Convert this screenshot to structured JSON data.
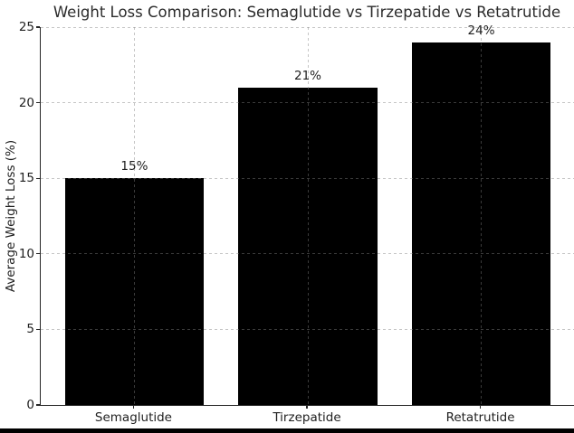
{
  "chart_data": {
    "type": "bar",
    "title": "Weight Loss Comparison: Semaglutide vs Tirzepatide vs Retatrutide",
    "categories": [
      "Semaglutide",
      "Tirzepatide",
      "Retatrutide"
    ],
    "values": [
      15,
      21,
      24
    ],
    "bar_labels": [
      "15%",
      "21%",
      "24%"
    ],
    "xlabel": "",
    "ylabel": "Average Weight Loss (%)",
    "ylim": [
      0,
      25
    ],
    "yticks": [
      0,
      5,
      10,
      15,
      20,
      25
    ],
    "legend": "none",
    "grid": "dashed gridlines on both axes, drawn over bars",
    "bar_color": "#000000",
    "grid_color": "#c9c9c9",
    "text_color": "#1f1f1f",
    "spine_color": "#262626",
    "background_color": "#ffffff"
  }
}
